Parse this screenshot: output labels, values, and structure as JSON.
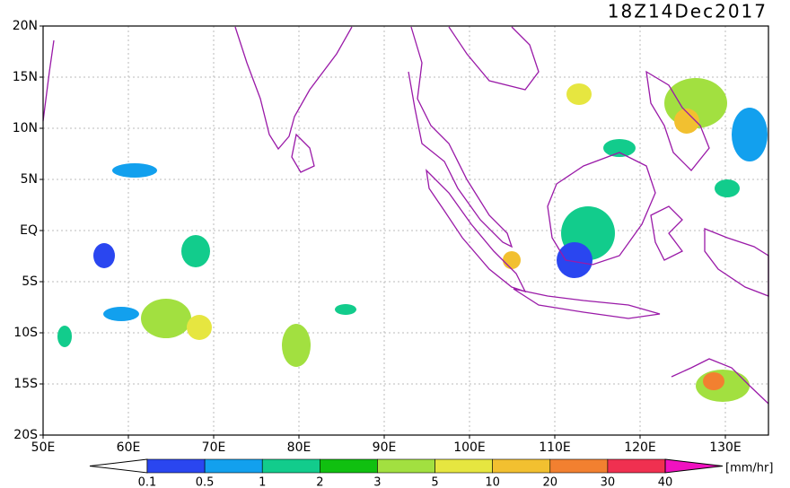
{
  "map": {
    "title": "18Z14Dec2017",
    "lat_labels": [
      "20N",
      "15N",
      "10N",
      "5N",
      "EQ",
      "5S",
      "10S",
      "15S",
      "20S"
    ],
    "lon_labels": [
      "50E",
      "60E",
      "70E",
      "80E",
      "90E",
      "100E",
      "110E",
      "120E",
      "130E"
    ],
    "colorbar": {
      "labels": [
        "0.1",
        "0.5",
        "1",
        "2",
        "3",
        "5",
        "10",
        "20",
        "30",
        "40"
      ],
      "colors": [
        "#ffffff",
        "#2a46f0",
        "#12a0ee",
        "#12cc8c",
        "#10c010",
        "#a2e040",
        "#e6e640",
        "#f2c030",
        "#f28030",
        "#f03050",
        "#f012c0"
      ],
      "unit": "[mm/hr]"
    }
  }
}
